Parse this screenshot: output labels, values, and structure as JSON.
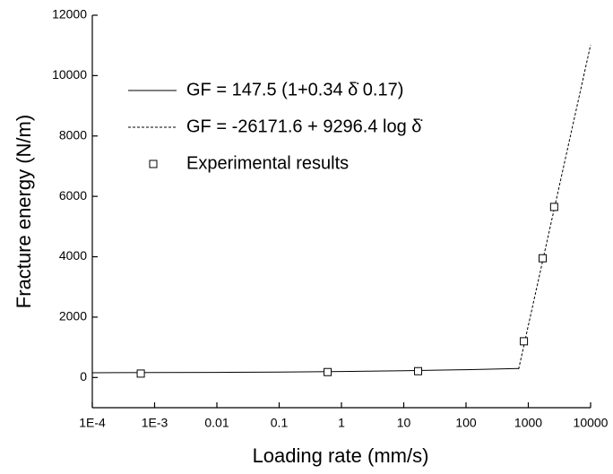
{
  "chart_data": {
    "type": "line",
    "x_label": "Loading rate (mm/s)",
    "y_label": "Fracture energy (N/m)",
    "x_log": true,
    "xlim": [
      0.0001,
      10000
    ],
    "xticks": [
      {
        "value": 0.0001,
        "label": "1E-4"
      },
      {
        "value": 0.001,
        "label": "1E-3"
      },
      0.01,
      0.1,
      1,
      10,
      100,
      1000,
      10000
    ],
    "ylim": [
      -1000,
      12000
    ],
    "yticks": [
      0,
      2000,
      4000,
      6000,
      8000,
      10000,
      12000
    ],
    "legend": "upper-left",
    "series": [
      {
        "name": "GF = 147.5 (1+0.34 δ̇ 0.17)",
        "style": "solid",
        "color": "#000000",
        "x": [
          0.0001,
          0.001,
          0.01,
          0.1,
          1,
          10,
          100,
          700
        ],
        "values": [
          158,
          163,
          170,
          181,
          198,
          222,
          257,
          301
        ]
      },
      {
        "name": "GF = -26171.6 + 9296.4 log δ̇",
        "style": "dashed",
        "color": "#000000",
        "x": [
          700,
          10000
        ],
        "values": [
          277,
          11014
        ]
      },
      {
        "name": "Experimental results",
        "style": "square",
        "color": "#000000",
        "x": [
          0.0006,
          0.6,
          17,
          850,
          1700,
          2600
        ],
        "values": [
          130,
          180,
          210,
          1200,
          3950,
          5650
        ]
      }
    ]
  }
}
